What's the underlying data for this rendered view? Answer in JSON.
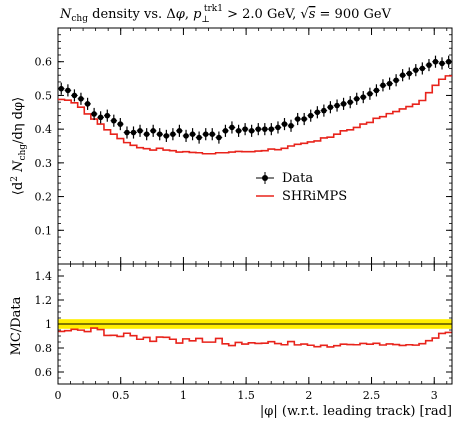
{
  "chart_data": [
    {
      "type": "line",
      "panel": "main",
      "title": "N_chg density vs. Δφ, p⊥^trk1 > 2.0 GeV, √s = 900 GeV",
      "title_parts": {
        "n": "N",
        "n_sub": "chg",
        "mid": " density vs. Δ",
        "phi": "φ",
        "comma": ", ",
        "p": "p",
        "p_sub": "⊥",
        "p_sup": "trk1",
        "cut": " > 2.0 GeV, ",
        "sqrt": "√",
        "s": "s",
        "energy": " = 900 GeV"
      },
      "xlabel": "|φ| (w.r.t. leading track) [rad]",
      "ylabel": "⟨d² N_chg / dη dφ⟩",
      "ylabel_parts": {
        "open": "⟨d",
        "two": "2",
        "n": " N",
        "n_sub": "chg",
        "mid": "/dη dφ⟩"
      },
      "xlim": [
        0,
        3.1416
      ],
      "ylim": [
        0,
        0.7
      ],
      "xticks": [
        "0",
        "0.5",
        "1",
        "1.5",
        "2",
        "2.5",
        "3"
      ],
      "yticks": [
        "0.1",
        "0.2",
        "0.3",
        "0.4",
        "0.5",
        "0.6"
      ],
      "legend_position": "middle-right",
      "series": [
        {
          "name": "Data",
          "kind": "points-with-errors",
          "color": "#000000",
          "x": [
            0.026,
            0.079,
            0.131,
            0.183,
            0.236,
            0.288,
            0.34,
            0.393,
            0.445,
            0.497,
            0.55,
            0.602,
            0.654,
            0.707,
            0.759,
            0.811,
            0.864,
            0.916,
            0.968,
            1.021,
            1.073,
            1.125,
            1.178,
            1.23,
            1.283,
            1.335,
            1.387,
            1.44,
            1.492,
            1.544,
            1.597,
            1.649,
            1.701,
            1.754,
            1.806,
            1.858,
            1.911,
            1.963,
            2.015,
            2.068,
            2.12,
            2.172,
            2.225,
            2.277,
            2.33,
            2.382,
            2.434,
            2.487,
            2.539,
            2.591,
            2.644,
            2.696,
            2.748,
            2.801,
            2.853,
            2.905,
            2.958,
            3.01,
            3.062,
            3.115
          ],
          "y": [
            0.52,
            0.515,
            0.5,
            0.49,
            0.475,
            0.445,
            0.435,
            0.44,
            0.425,
            0.415,
            0.39,
            0.39,
            0.395,
            0.385,
            0.395,
            0.385,
            0.38,
            0.385,
            0.395,
            0.38,
            0.385,
            0.375,
            0.385,
            0.385,
            0.375,
            0.395,
            0.405,
            0.395,
            0.4,
            0.395,
            0.4,
            0.4,
            0.4,
            0.405,
            0.415,
            0.41,
            0.43,
            0.43,
            0.44,
            0.45,
            0.455,
            0.465,
            0.47,
            0.475,
            0.48,
            0.49,
            0.495,
            0.505,
            0.515,
            0.53,
            0.535,
            0.545,
            0.56,
            0.565,
            0.575,
            0.58,
            0.59,
            0.6,
            0.595,
            0.6
          ],
          "yerr": [
            0.018,
            0.018,
            0.018,
            0.018,
            0.018,
            0.018,
            0.018,
            0.018,
            0.018,
            0.018,
            0.018,
            0.018,
            0.018,
            0.018,
            0.018,
            0.018,
            0.018,
            0.018,
            0.018,
            0.018,
            0.018,
            0.018,
            0.018,
            0.018,
            0.018,
            0.018,
            0.018,
            0.018,
            0.018,
            0.018,
            0.018,
            0.018,
            0.018,
            0.018,
            0.018,
            0.018,
            0.018,
            0.018,
            0.018,
            0.018,
            0.018,
            0.018,
            0.018,
            0.018,
            0.018,
            0.018,
            0.018,
            0.018,
            0.018,
            0.018,
            0.018,
            0.018,
            0.018,
            0.018,
            0.018,
            0.018,
            0.018,
            0.018,
            0.018,
            0.018
          ]
        },
        {
          "name": "SHRiMPS",
          "kind": "step",
          "color": "#e8231b",
          "x": [
            0.026,
            0.079,
            0.131,
            0.183,
            0.236,
            0.288,
            0.34,
            0.393,
            0.445,
            0.497,
            0.55,
            0.602,
            0.654,
            0.707,
            0.759,
            0.811,
            0.864,
            0.916,
            0.968,
            1.021,
            1.073,
            1.125,
            1.178,
            1.23,
            1.283,
            1.335,
            1.387,
            1.44,
            1.492,
            1.544,
            1.597,
            1.649,
            1.701,
            1.754,
            1.806,
            1.858,
            1.911,
            1.963,
            2.015,
            2.068,
            2.12,
            2.172,
            2.225,
            2.277,
            2.33,
            2.382,
            2.434,
            2.487,
            2.539,
            2.591,
            2.644,
            2.696,
            2.748,
            2.801,
            2.853,
            2.905,
            2.958,
            3.01,
            3.062,
            3.115
          ],
          "y": [
            0.488,
            0.486,
            0.478,
            0.465,
            0.445,
            0.43,
            0.415,
            0.398,
            0.385,
            0.372,
            0.36,
            0.352,
            0.345,
            0.342,
            0.338,
            0.343,
            0.338,
            0.336,
            0.332,
            0.333,
            0.331,
            0.33,
            0.327,
            0.327,
            0.33,
            0.33,
            0.332,
            0.334,
            0.333,
            0.333,
            0.335,
            0.336,
            0.341,
            0.339,
            0.343,
            0.35,
            0.355,
            0.358,
            0.362,
            0.365,
            0.374,
            0.376,
            0.385,
            0.395,
            0.398,
            0.405,
            0.415,
            0.42,
            0.432,
            0.437,
            0.446,
            0.452,
            0.46,
            0.467,
            0.474,
            0.485,
            0.508,
            0.53,
            0.548,
            0.558
          ]
        }
      ]
    },
    {
      "type": "line",
      "panel": "ratio",
      "ylabel": "MC/Data",
      "xlim": [
        0,
        3.1416
      ],
      "ylim": [
        0.5,
        1.5
      ],
      "yticks": [
        "0.6",
        "0.8",
        "1",
        "1.2",
        "1.4"
      ],
      "band": {
        "center": 1.0,
        "half_width": 0.04,
        "color": "#ffee00"
      },
      "series": [
        {
          "name": "SHRiMPS / Data",
          "kind": "step",
          "color": "#e8231b",
          "values": [
            0.938,
            0.944,
            0.956,
            0.949,
            0.937,
            0.966,
            0.954,
            0.905,
            0.906,
            0.896,
            0.923,
            0.903,
            0.873,
            0.888,
            0.856,
            0.891,
            0.889,
            0.873,
            0.841,
            0.876,
            0.86,
            0.88,
            0.849,
            0.849,
            0.88,
            0.835,
            0.82,
            0.846,
            0.833,
            0.843,
            0.838,
            0.84,
            0.853,
            0.837,
            0.827,
            0.854,
            0.826,
            0.833,
            0.823,
            0.811,
            0.822,
            0.809,
            0.819,
            0.832,
            0.829,
            0.827,
            0.838,
            0.832,
            0.839,
            0.825,
            0.834,
            0.829,
            0.821,
            0.827,
            0.824,
            0.836,
            0.861,
            0.883,
            0.921,
            0.93
          ]
        }
      ]
    }
  ]
}
